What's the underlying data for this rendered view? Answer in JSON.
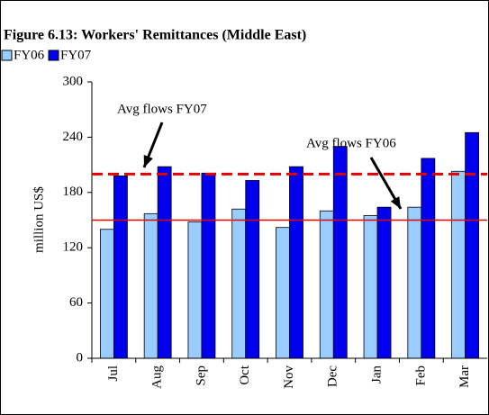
{
  "chart_data": {
    "type": "bar",
    "title": "Figure 6.13: Workers' Remittances (Middle East)",
    "ylabel": "million US$",
    "categories": [
      "Jul",
      "Aug",
      "Sep",
      "Oct",
      "Nov",
      "Dec",
      "Jan",
      "Feb",
      "Mar"
    ],
    "series": [
      {
        "name": "FY06",
        "color": "#99ccff",
        "values": [
          140,
          157,
          148,
          162,
          142,
          160,
          155,
          164,
          203
        ]
      },
      {
        "name": "FY07",
        "color": "#0000ee",
        "values": [
          198,
          208,
          201,
          193,
          208,
          230,
          164,
          217,
          245
        ]
      }
    ],
    "ylim": [
      0,
      300
    ],
    "yticks": [
      0,
      60,
      120,
      180,
      240,
      300
    ],
    "reference_lines": [
      {
        "label": "Avg flows FY07",
        "value": 200,
        "color": "#e00000",
        "style": "dashed"
      },
      {
        "label": "Avg flows FY06",
        "value": 150,
        "color": "#e00000",
        "style": "solid"
      }
    ]
  }
}
